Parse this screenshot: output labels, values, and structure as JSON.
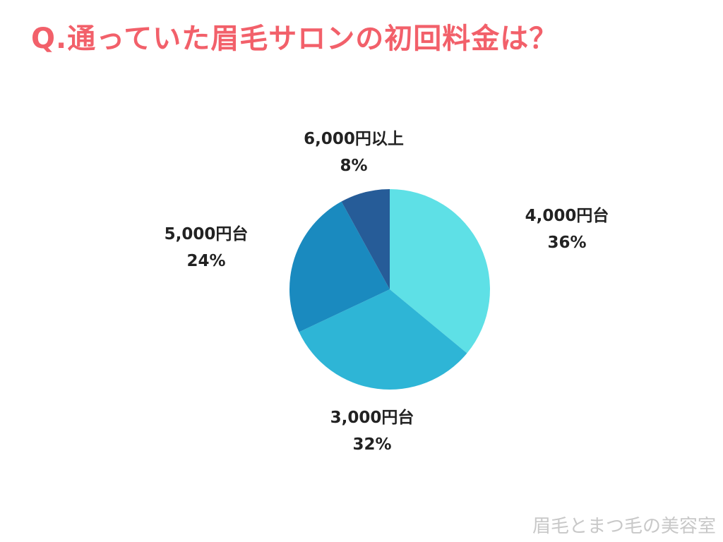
{
  "title": "Q.通っていた眉毛サロンの初回料金は？",
  "watermark": "眉毛とまつ毛の美容室",
  "colors": {
    "title": "#f2606a",
    "watermark": "#c8c8c8"
  },
  "chart_data": {
    "type": "pie",
    "title": "Q.通っていた眉毛サロンの初回料金は？",
    "legend": "none",
    "start_angle_deg": 0,
    "direction": "clockwise",
    "slices": [
      {
        "label": "4,000円台",
        "value": 36,
        "value_label": "36%",
        "color": "#5ee0e6"
      },
      {
        "label": "3,000円台",
        "value": 32,
        "value_label": "32%",
        "color": "#2eb5d6"
      },
      {
        "label": "5,000円台",
        "value": 24,
        "value_label": "24%",
        "color": "#1a8abf"
      },
      {
        "label": "6,000円以上",
        "value": 8,
        "value_label": "8%",
        "color": "#265c98"
      }
    ]
  }
}
